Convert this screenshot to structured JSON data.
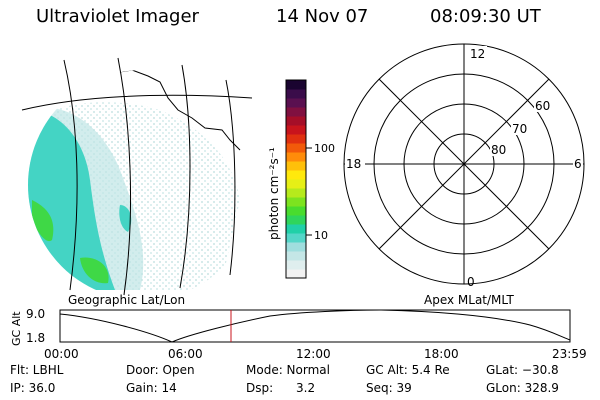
{
  "header": {
    "instrument": "Ultraviolet Imager",
    "date": "14 Nov 07",
    "time": "08:09:30 UT"
  },
  "colorbar": {
    "label": "photon cm⁻²s⁻¹",
    "ticks": [
      {
        "label": "100",
        "value": 100
      },
      {
        "label": "10",
        "value": 10
      }
    ],
    "colors": [
      "#f2f2f2",
      "#dfeeee",
      "#c4e6e6",
      "#9fdede",
      "#54d6c8",
      "#21d0a8",
      "#2fd55c",
      "#49dc2e",
      "#7de31f",
      "#b6ea1c",
      "#e6ef16",
      "#ffe90c",
      "#ffc00a",
      "#ff8c0a",
      "#f25a0a",
      "#e03010",
      "#c8141c",
      "#a50e28",
      "#801040",
      "#5a1050",
      "#3a0c4a",
      "#1a0430"
    ]
  },
  "left_map": {
    "caption": "Geographic Lat/Lon"
  },
  "polar_plot": {
    "caption": "Apex MLat/MLT",
    "mlt_labels": {
      "top": "12",
      "left": "18",
      "right": "6",
      "bottom": "0"
    },
    "mlat_labels": [
      "60",
      "70",
      "80"
    ]
  },
  "altitude_plot": {
    "ylabel": "GC Alt",
    "yticks": [
      "9.0",
      "1.8"
    ],
    "xticks": [
      "00:00",
      "06:00",
      "12:00",
      "18:00",
      "23:59"
    ],
    "current_time_marker": "08:09:30"
  },
  "info": {
    "row1": {
      "filter": "Flt: LBHL",
      "door": "Door: Open",
      "mode": "Mode: Normal",
      "gc_alt": "GC Alt: 5.4 Re",
      "glat": "GLat: −30.8"
    },
    "row2": {
      "ip": "IP: 36.0",
      "gain": "Gain: 14",
      "dsp_label": "Dsp:",
      "dsp_value": "3.2",
      "seq": "Seq: 39",
      "glon": "GLon: 328.9"
    }
  }
}
